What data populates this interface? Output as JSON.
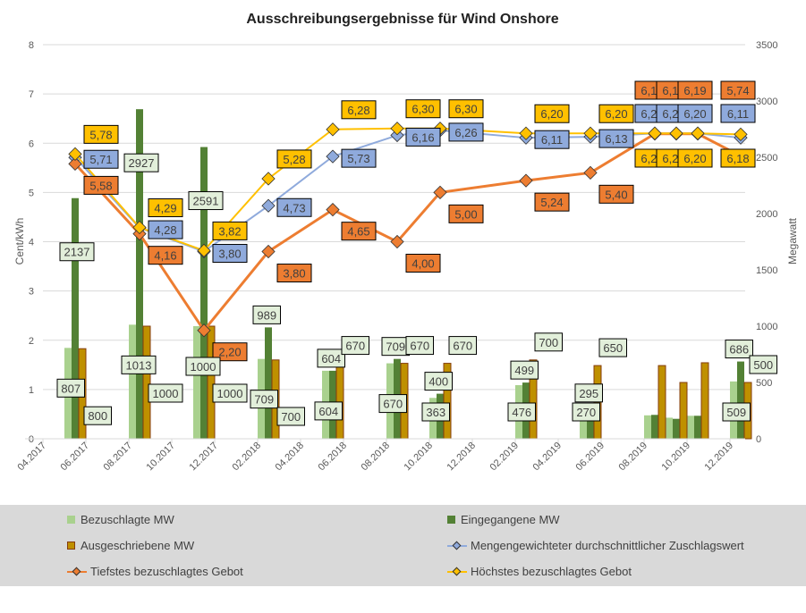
{
  "chart_data": {
    "type": "bar+line",
    "title": "Ausschreibungsergebnisse für Wind Onshore",
    "y_left_label": "Cent/kWh",
    "y_right_label": "Megawatt",
    "y_left_lim": [
      0,
      8
    ],
    "y_right_lim": [
      0,
      3500
    ],
    "y_left_ticks": [
      "0",
      "1",
      "2",
      "3",
      "4",
      "5",
      "6",
      "7",
      "8"
    ],
    "y_right_ticks": [
      "0",
      "500",
      "1000",
      "1500",
      "2000",
      "2500",
      "3000",
      "3500"
    ],
    "x_tick_labels": [
      "04.2017",
      "06.2017",
      "08.2017",
      "10.2017",
      "12.2017",
      "02.2018",
      "04.2018",
      "06.2018",
      "08.2018",
      "10.2018",
      "12.2018",
      "02.2019",
      "04.2019",
      "06.2019",
      "08.2019",
      "10.2019",
      "12.2019"
    ],
    "x": [
      "05.2017",
      "08.2017",
      "11.2017",
      "02.2018",
      "05.2018",
      "08.2018",
      "10.2018",
      "02.2019",
      "05.2019",
      "08.2019",
      "09.2019",
      "10.2019",
      "12.2019"
    ],
    "grid": true,
    "legend_position": "bottom",
    "bar_labels_shown": [
      true,
      true,
      true,
      true,
      true,
      true,
      true,
      true,
      true,
      false,
      false,
      false,
      true
    ],
    "bar_series": [
      {
        "name": "Bezuschlagte MW",
        "color": "#a9d18e",
        "axis": "right",
        "values": [
          807,
          1013,
          1000,
          709,
          604,
          670,
          363,
          476,
          270,
          208,
          187,
          204,
          509
        ]
      },
      {
        "name": "Eingegangene MW",
        "color": "#538135",
        "axis": "right",
        "values": [
          2137,
          2927,
          2591,
          989,
          604,
          709,
          400,
          499,
          295,
          212,
          177,
          204,
          686
        ]
      },
      {
        "name": "Ausgeschriebene MW",
        "color": "#bf9000",
        "axis": "right",
        "values": [
          800,
          1000,
          1000,
          700,
          670,
          670,
          670,
          700,
          650,
          650,
          500,
          675,
          500
        ]
      }
    ],
    "line_series": [
      {
        "name": "Mengengewichteter durchschnittlicher Zuschlagswert",
        "color": "#8faadc",
        "axis": "left",
        "values": [
          5.71,
          4.28,
          3.8,
          4.73,
          5.73,
          6.16,
          6.26,
          6.11,
          6.13,
          6.2,
          6.2,
          6.2,
          6.11
        ]
      },
      {
        "name": "Tiefstes bezuschlagtes Gebot",
        "color": "#ed7d31",
        "axis": "left",
        "values": [
          5.58,
          4.16,
          2.2,
          3.8,
          4.65,
          4.0,
          5.0,
          5.24,
          5.4,
          6.19,
          6.19,
          6.19,
          5.74
        ]
      },
      {
        "name": "Höchstes bezuschlagtes Gebot",
        "color": "#ffc000",
        "axis": "left",
        "values": [
          5.78,
          4.29,
          3.82,
          5.28,
          6.28,
          6.3,
          6.3,
          6.2,
          6.2,
          6.2,
          6.2,
          6.2,
          6.18
        ]
      }
    ]
  }
}
